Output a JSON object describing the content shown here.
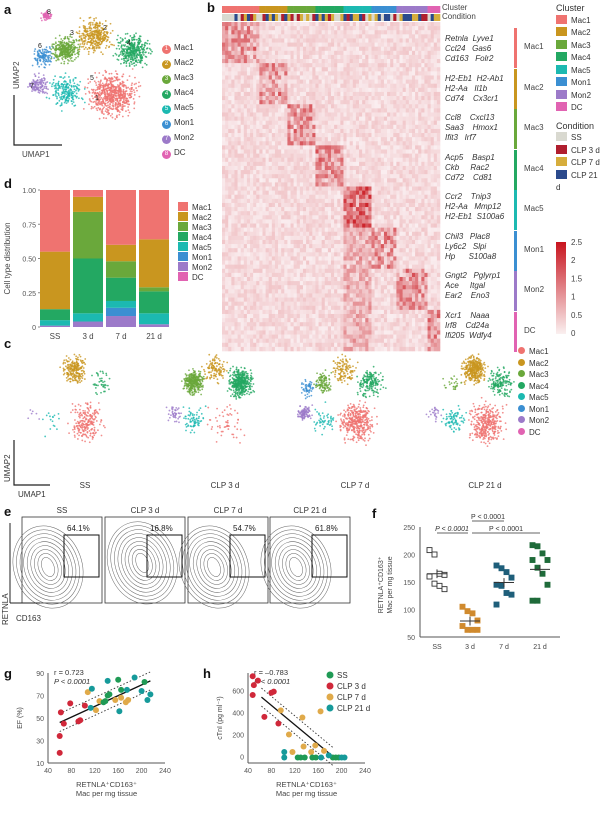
{
  "panels": {
    "a": "a",
    "b": "b",
    "c": "c",
    "d": "d",
    "e": "e",
    "f": "f",
    "g": "g",
    "h": "h"
  },
  "clusters": [
    "Mac1",
    "Mac2",
    "Mac3",
    "Mac4",
    "Mac5",
    "Mon1",
    "Mon2",
    "DC"
  ],
  "cluster_numbers": [
    "1",
    "2",
    "3",
    "4",
    "5",
    "6",
    "7",
    "8"
  ],
  "cluster_colors": [
    "#ef7370",
    "#c9961f",
    "#6aa83b",
    "#23a862",
    "#1cb9b1",
    "#3b8fd2",
    "#9c7ac9",
    "#e163b2"
  ],
  "umap": {
    "x": "UMAP1",
    "y": "UMAP2"
  },
  "heatmap": {
    "track_labels": [
      "Cluster",
      "Condition"
    ],
    "genes": [
      [
        "Retnla  Lyve1",
        "Ccl24   Gas6",
        "Cd163   Folr2"
      ],
      [
        "H2-Eb1  H2-Ab1",
        "H2-Aa   Il1b",
        "Cd74    Cx3cr1"
      ],
      [
        "Ccl8    Cxcl13",
        "Saa3    Hmox1",
        "Ifit3   Irf7"
      ],
      [
        "Acp5    Basp1",
        "Ckb     Rac2",
        "Cd72    Cd81"
      ],
      [
        "Ccr2    Tnip3",
        "H2-Aa   Mmp12",
        "H2-Eb1  S100a6"
      ],
      [
        "Chil3   Plac8",
        "Ly6c2   Slpi",
        "Hp      S100a8"
      ],
      [
        "Gngt2   Pglyrp1",
        "Ace     Itgal",
        "Ear2    Eno3"
      ],
      [
        "Xcr1    Naaa",
        "Irf8    Cd24a",
        "Ifi205  Wdfy4"
      ]
    ],
    "legend_cluster_title": "Cluster",
    "legend_condition_title": "Condition",
    "conditions": [
      "SS",
      "CLP 3 d",
      "CLP 7 d",
      "CLP 21 d"
    ],
    "condition_colors": [
      "#d9d9d0",
      "#b01e2e",
      "#d6ad3c",
      "#2b4a8c"
    ],
    "colorbar_ticks": [
      "2.5",
      "2",
      "1.5",
      "1",
      "0.5",
      "0"
    ]
  },
  "umap_c": {
    "conditions": [
      "SS",
      "CLP 3 d",
      "CLP 7 d",
      "CLP 21 d"
    ]
  },
  "flow": {
    "conditions": [
      "SS",
      "CLP 3 d",
      "CLP 7 d",
      "CLP 21 d"
    ],
    "percent": [
      "64.1%",
      "16.8%",
      "54.7%",
      "61.8%"
    ],
    "xlabel": "CD163",
    "ylabel": "RETNLA"
  },
  "chart_data": [
    {
      "id": "d",
      "type": "bar",
      "stacked": true,
      "categories": [
        "SS",
        "3 d",
        "7 d",
        "21 d"
      ],
      "ylabel": "Cell type distribution",
      "ylim": [
        0,
        1
      ],
      "yticks": [
        "0",
        "0.25",
        "0.50",
        "0.75",
        "1.00"
      ],
      "legend": "right",
      "series": [
        {
          "name": "DC",
          "values": [
            0,
            0,
            0,
            0
          ]
        },
        {
          "name": "Mon2",
          "values": [
            0.01,
            0.04,
            0.08,
            0.02
          ]
        },
        {
          "name": "Mon1",
          "values": [
            0,
            0,
            0.06,
            0
          ]
        },
        {
          "name": "Mac5",
          "values": [
            0.04,
            0.06,
            0.05,
            0.08
          ]
        },
        {
          "name": "Mac4",
          "values": [
            0.08,
            0.4,
            0.17,
            0.16
          ]
        },
        {
          "name": "Mac3",
          "values": [
            0,
            0.34,
            0.12,
            0.03
          ]
        },
        {
          "name": "Mac2",
          "values": [
            0.42,
            0.11,
            0.12,
            0.35
          ]
        },
        {
          "name": "Mac1",
          "values": [
            0.45,
            0.05,
            0.4,
            0.36
          ]
        }
      ]
    },
    {
      "id": "f",
      "type": "scatter",
      "categories": [
        "SS",
        "3 d",
        "7 d",
        "21 d"
      ],
      "ylabel": [
        "RETNLA⁺CD163⁺",
        "Mac per mg tissue"
      ],
      "ylim": [
        50,
        250
      ],
      "yticks": [
        "50",
        "100",
        "150",
        "200",
        "250"
      ],
      "colors": [
        "#ffffff",
        "#d08a2e",
        "#1f5f7a",
        "#1f6b3a"
      ],
      "groups": [
        [
          208,
          200,
          165,
          163,
          160,
          147,
          143,
          137
        ],
        [
          105,
          97,
          93,
          80,
          70,
          63,
          63,
          63
        ],
        [
          180,
          175,
          168,
          158,
          145,
          143,
          130,
          127,
          109
        ],
        [
          217,
          215,
          202,
          190,
          190,
          176,
          165,
          145,
          116,
          116
        ]
      ],
      "means": [
        165,
        79,
        149,
        173
      ],
      "annotations": [
        {
          "text": "P < 0.0001",
          "from": "SS",
          "to": "3 d"
        },
        {
          "text": "P < 0.0001",
          "from": "3 d",
          "to": "21 d"
        },
        {
          "text": "P < 0.0001",
          "from": "3 d",
          "to": "7 d"
        }
      ]
    },
    {
      "id": "g",
      "type": "scatter",
      "xlabel": [
        "RETNLA⁺CD163⁺",
        "Mac per mg tissue"
      ],
      "ylabel": "EF (%)",
      "xlim": [
        40,
        240
      ],
      "ylim": [
        10,
        90
      ],
      "xticks": [
        "40",
        "80",
        "120",
        "160",
        "200",
        "240"
      ],
      "yticks": [
        "10",
        "30",
        "50",
        "70",
        "90"
      ],
      "stats": [
        "r = 0.723",
        "P < 0.0001"
      ],
      "fit": [
        [
          60,
          46
        ],
        [
          215,
          83
        ]
      ],
      "points": [
        [
          60,
          34,
          1
        ],
        [
          60,
          19,
          1
        ],
        [
          62,
          55,
          1
        ],
        [
          67,
          45,
          1
        ],
        [
          78,
          63,
          1
        ],
        [
          92,
          47,
          1
        ],
        [
          95,
          48,
          1
        ],
        [
          103,
          61,
          1
        ],
        [
          108,
          73,
          2
        ],
        [
          122,
          57,
          2
        ],
        [
          128,
          65,
          2
        ],
        [
          135,
          64,
          0
        ],
        [
          138,
          65,
          0
        ],
        [
          142,
          70,
          0
        ],
        [
          145,
          71,
          0
        ],
        [
          155,
          66,
          2
        ],
        [
          165,
          68,
          2
        ],
        [
          173,
          64,
          2
        ],
        [
          177,
          66,
          2
        ],
        [
          160,
          84,
          0
        ],
        [
          165,
          75,
          0
        ],
        [
          205,
          82,
          0
        ],
        [
          113,
          59,
          3
        ],
        [
          115,
          76,
          3
        ],
        [
          142,
          83,
          3
        ],
        [
          162,
          56,
          3
        ],
        [
          175,
          75,
          3
        ],
        [
          188,
          86,
          3
        ],
        [
          200,
          74,
          3
        ],
        [
          210,
          66,
          3
        ],
        [
          215,
          71,
          3
        ]
      ]
    },
    {
      "id": "h",
      "type": "scatter",
      "xlabel": [
        "RETNLA⁺CD163⁺",
        "Mac per mg tissue"
      ],
      "ylabel": "cTnI (pg ml⁻¹)",
      "xlim": [
        40,
        240
      ],
      "ylim": [
        -60,
        760
      ],
      "xticks": [
        "40",
        "80",
        "120",
        "160",
        "200",
        "240"
      ],
      "yticks": [
        "0",
        "200",
        "400",
        "600"
      ],
      "stats": [
        "r = –0.783",
        "P < 0.0001"
      ],
      "fit": [
        [
          63,
          540
        ],
        [
          185,
          0
        ]
      ],
      "legend": "top-right",
      "series_names": [
        "SS",
        "CLP 3 d",
        "CLP 7 d",
        "CLP 21 d"
      ],
      "points": [
        [
          48,
          730,
          1
        ],
        [
          50,
          650,
          1
        ],
        [
          48,
          560,
          1
        ],
        [
          57,
          690,
          1
        ],
        [
          80,
          580,
          1
        ],
        [
          84,
          590,
          1
        ],
        [
          68,
          360,
          1
        ],
        [
          92,
          300,
          1
        ],
        [
          96,
          420,
          2
        ],
        [
          110,
          200,
          2
        ],
        [
          133,
          355,
          2
        ],
        [
          135,
          90,
          2
        ],
        [
          116,
          40,
          2
        ],
        [
          148,
          40,
          2
        ],
        [
          155,
          100,
          2
        ],
        [
          164,
          410,
          2
        ],
        [
          170,
          50,
          2
        ],
        [
          125,
          -10,
          0
        ],
        [
          130,
          -10,
          0
        ],
        [
          137,
          -10,
          0
        ],
        [
          150,
          -10,
          0
        ],
        [
          156,
          -10,
          0
        ],
        [
          185,
          -10,
          0
        ],
        [
          190,
          -10,
          0
        ],
        [
          195,
          -10,
          0
        ],
        [
          102,
          40,
          3
        ],
        [
          102,
          -10,
          3
        ],
        [
          165,
          -10,
          3
        ],
        [
          178,
          10,
          3
        ],
        [
          200,
          -10,
          3
        ],
        [
          205,
          -10,
          3
        ]
      ]
    }
  ],
  "series_colors": [
    "#1f9a55",
    "#d0283a",
    "#e0aa4a",
    "#169a9a"
  ]
}
